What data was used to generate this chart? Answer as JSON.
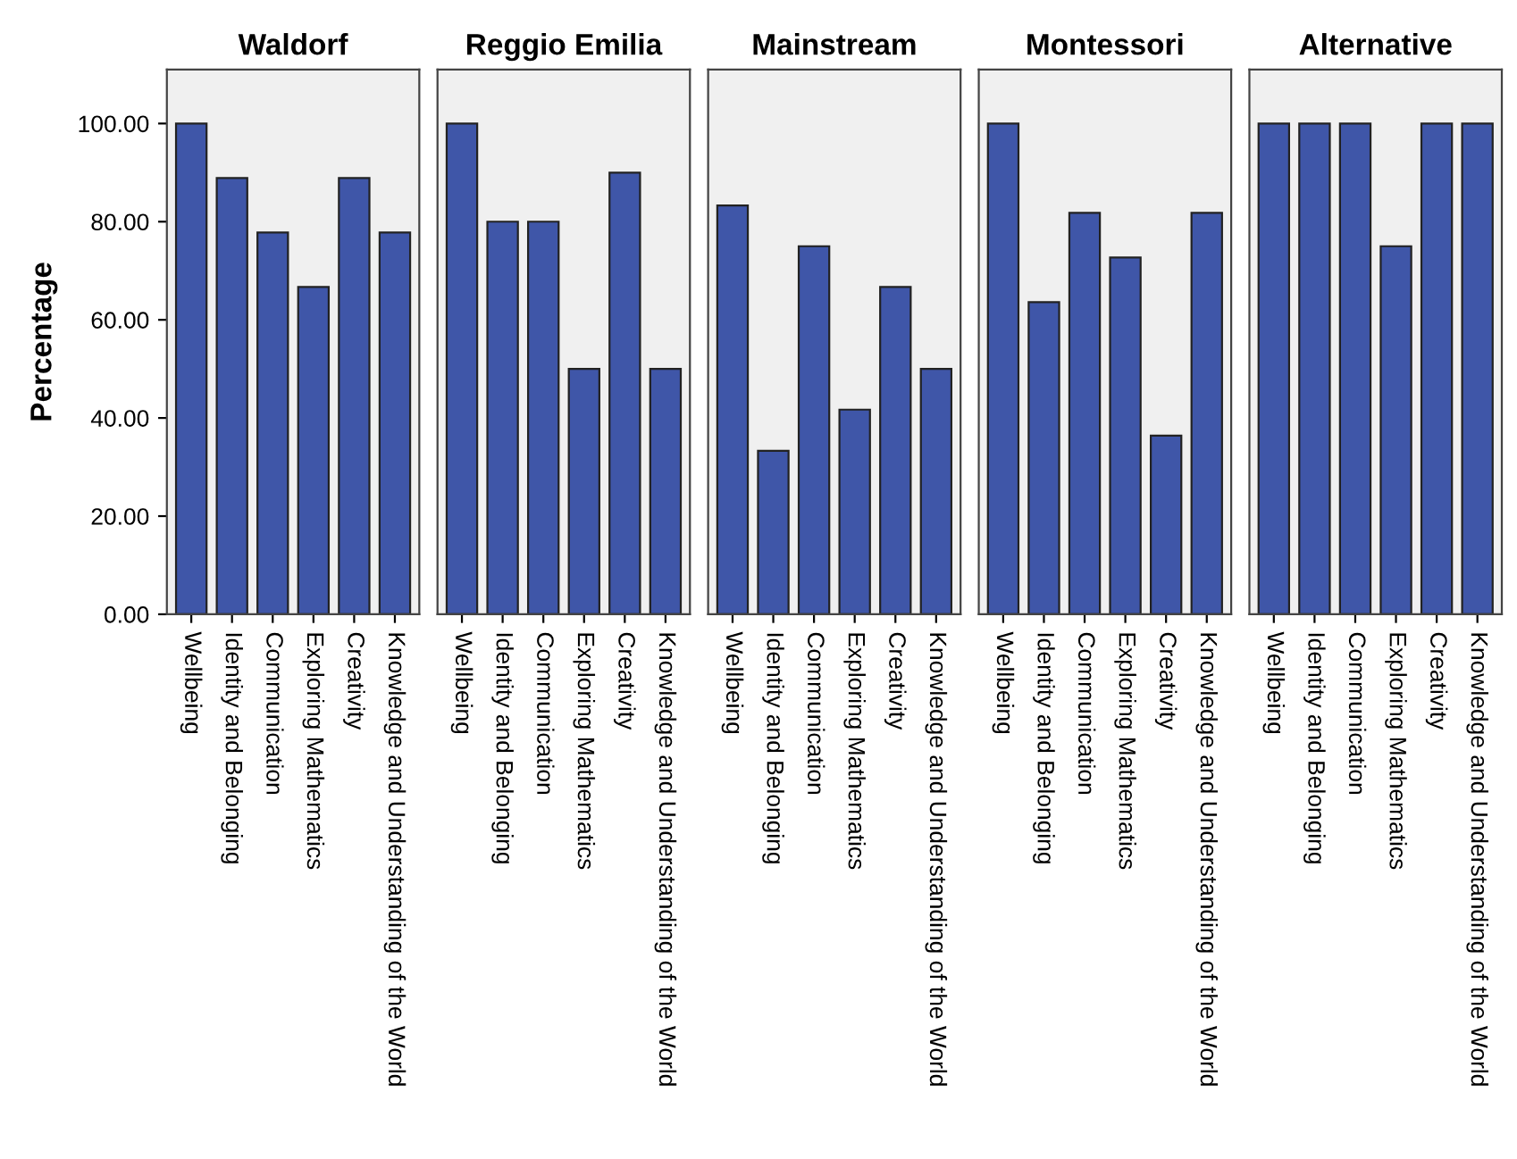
{
  "chart_data": [
    {
      "type": "bar",
      "title": "Waldorf",
      "ylabel": "Percentage",
      "categories": [
        "Wellbeing",
        "Identity and Belonging",
        "Communication",
        "Exploring Mathematics",
        "Creativity",
        "Knowledge and Understanding of the World"
      ],
      "values": [
        100,
        88.9,
        77.8,
        66.7,
        88.9,
        77.8
      ],
      "color": "#3f56a8",
      "ylim": [
        0,
        111
      ],
      "yticks": [
        {
          "value": 0,
          "label": "0.00"
        },
        {
          "value": 20,
          "label": "20.00"
        },
        {
          "value": 40,
          "label": "40.00"
        },
        {
          "value": 60,
          "label": "60.00"
        },
        {
          "value": 80,
          "label": "80.00"
        },
        {
          "value": 100,
          "label": "100.00"
        }
      ],
      "grid": false,
      "legend": false
    },
    {
      "type": "bar",
      "title": "Reggio Emilia",
      "categories": [
        "Wellbeing",
        "Identity and Belonging",
        "Communication",
        "Exploring Mathematics",
        "Creativity",
        "Knowledge and Understanding of the World"
      ],
      "values": [
        100,
        80,
        80,
        50,
        90,
        50
      ],
      "color": "#3f56a8",
      "ylim": [
        0,
        111
      ],
      "tick_labels": "x",
      "grid": false,
      "legend": false
    },
    {
      "type": "bar",
      "title": "Mainstream",
      "categories": [
        "Wellbeing",
        "Identity and Belonging",
        "Communication",
        "Exploring Mathematics",
        "Creativity",
        "Knowledge and Understanding of the World"
      ],
      "values": [
        83.3,
        33.3,
        75,
        41.7,
        66.7,
        50
      ],
      "color": "#3f56a8",
      "ylim": [
        0,
        111
      ],
      "tick_labels": "x",
      "grid": false,
      "legend": false
    },
    {
      "type": "bar",
      "title": "Montessori",
      "categories": [
        "Wellbeing",
        "Identity and Belonging",
        "Communication",
        "Exploring Mathematics",
        "Creativity",
        "Knowledge and Understanding of the World"
      ],
      "values": [
        100,
        63.6,
        81.8,
        72.7,
        36.4,
        81.8
      ],
      "color": "#3f56a8",
      "ylim": [
        0,
        111
      ],
      "tick_labels": "x",
      "grid": false,
      "legend": false
    },
    {
      "type": "bar",
      "title": "Alternative",
      "categories": [
        "Wellbeing",
        "Identity and Belonging",
        "Communication",
        "Exploring Mathematics",
        "Creativity",
        "Knowledge and Understanding of the World"
      ],
      "values": [
        100,
        100,
        100,
        75,
        100,
        100
      ],
      "color": "#3f56a8",
      "ylim": [
        0,
        111
      ],
      "tick_labels": "x",
      "grid": false,
      "legend": false
    }
  ]
}
